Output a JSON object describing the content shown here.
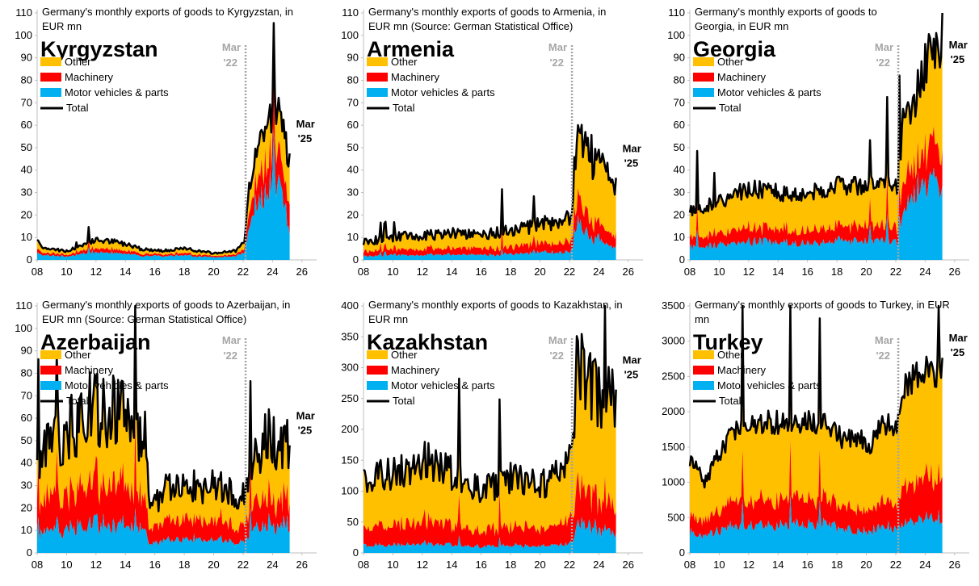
{
  "colors": {
    "other": "#ffc000",
    "machinery": "#ff0000",
    "motor": "#00b0f0",
    "total": "#000000",
    "marker": "#a6a6a6"
  },
  "legend": {
    "other": "Other",
    "machinery": "Machinery",
    "motor": "Motor vehicles & parts",
    "total": "Total"
  },
  "annotations": {
    "mar22_line1": "Mar",
    "mar22_line2": "'22",
    "mar25_line1": "Mar",
    "mar25_line2": "'25"
  },
  "chart_data": [
    {
      "type": "area",
      "country": "Kyrgyzstan",
      "title_lines": [
        "Germany's monthly exports of goods to Kyrgyzstan, in",
        "EUR mn"
      ],
      "ylim": [
        0,
        110
      ],
      "yticks": [
        0,
        10,
        20,
        30,
        40,
        50,
        60,
        70,
        80,
        90,
        100,
        110
      ],
      "xlim": [
        2008,
        2027
      ],
      "xticks": [
        "08",
        "10",
        "12",
        "14",
        "16",
        "18",
        "20",
        "22",
        "24",
        "26"
      ],
      "marker_x": 2022.17,
      "series_profile": [
        [
          2008,
          8,
          0.4,
          0.2
        ],
        [
          2008.6,
          5,
          0.4,
          0.2
        ],
        [
          2010,
          4,
          0.4,
          0.2
        ],
        [
          2011,
          6,
          0.4,
          0.2
        ],
        [
          2012,
          9,
          0.4,
          0.2
        ],
        [
          2013.5,
          8,
          0.4,
          0.2
        ],
        [
          2015,
          5,
          0.4,
          0.2
        ],
        [
          2016.5,
          4,
          0.4,
          0.2
        ],
        [
          2018,
          5,
          0.4,
          0.2
        ],
        [
          2020,
          3,
          0.4,
          0.2
        ],
        [
          2021.5,
          4,
          0.4,
          0.2
        ],
        [
          2022.1,
          8,
          0.4,
          0.2
        ],
        [
          2022.4,
          30,
          0.5,
          0.22
        ],
        [
          2022.8,
          48,
          0.5,
          0.22
        ],
        [
          2023.5,
          60,
          0.5,
          0.22
        ],
        [
          2024.2,
          68,
          0.48,
          0.22
        ],
        [
          2024.8,
          55,
          0.45,
          0.2
        ],
        [
          2025.2,
          40,
          0.25,
          0.25
        ]
      ],
      "noise": 0.15,
      "end_x": 2025.17
    },
    {
      "type": "area",
      "country": "Armenia",
      "title_lines": [
        "Germany's monthly exports of goods to Armenia, in",
        "EUR mn (Source: German Statistical Office)"
      ],
      "ylim": [
        0,
        110
      ],
      "yticks": [
        0,
        10,
        20,
        30,
        40,
        50,
        60,
        70,
        80,
        90,
        100,
        110
      ],
      "xlim": [
        2008,
        2027
      ],
      "xticks": [
        "08",
        "10",
        "12",
        "14",
        "16",
        "18",
        "20",
        "22",
        "24",
        "26"
      ],
      "marker_x": 2022.17,
      "series_profile": [
        [
          2008,
          8,
          0.2,
          0.25
        ],
        [
          2010,
          10,
          0.2,
          0.25
        ],
        [
          2012,
          11,
          0.2,
          0.25
        ],
        [
          2014,
          12,
          0.2,
          0.25
        ],
        [
          2016,
          11,
          0.2,
          0.25
        ],
        [
          2018,
          13,
          0.2,
          0.25
        ],
        [
          2020,
          16,
          0.2,
          0.25
        ],
        [
          2021.5,
          18,
          0.2,
          0.25
        ],
        [
          2022.1,
          20,
          0.2,
          0.25
        ],
        [
          2022.5,
          55,
          0.3,
          0.2
        ],
        [
          2023,
          50,
          0.25,
          0.18
        ],
        [
          2024,
          42,
          0.2,
          0.15
        ],
        [
          2025.2,
          30,
          0.15,
          0.15
        ]
      ],
      "noise": 0.22,
      "end_x": 2025.17
    },
    {
      "type": "area",
      "country": "Georgia",
      "title_lines": [
        "Germany's monthly exports of goods to",
        "Georgia, in EUR mn"
      ],
      "ylim": [
        0,
        110
      ],
      "yticks": [
        0,
        10,
        20,
        30,
        40,
        50,
        60,
        70,
        80,
        90,
        100,
        110
      ],
      "xlim": [
        2008,
        2027
      ],
      "xticks": [
        "08",
        "10",
        "12",
        "14",
        "16",
        "18",
        "20",
        "22",
        "24",
        "26"
      ],
      "marker_x": 2022.17,
      "series_profile": [
        [
          2008,
          22,
          0.25,
          0.2
        ],
        [
          2010,
          26,
          0.25,
          0.2
        ],
        [
          2012,
          32,
          0.25,
          0.2
        ],
        [
          2014,
          30,
          0.25,
          0.2
        ],
        [
          2016,
          30,
          0.25,
          0.2
        ],
        [
          2018,
          33,
          0.25,
          0.2
        ],
        [
          2020,
          33,
          0.25,
          0.2
        ],
        [
          2021.5,
          34,
          0.25,
          0.2
        ],
        [
          2022.1,
          32,
          0.25,
          0.2
        ],
        [
          2022.5,
          60,
          0.35,
          0.2
        ],
        [
          2023.5,
          75,
          0.4,
          0.18
        ],
        [
          2024.4,
          95,
          0.4,
          0.18
        ],
        [
          2025.2,
          85,
          0.35,
          0.15
        ]
      ],
      "noise": 0.13,
      "end_x": 2025.17
    },
    {
      "type": "area",
      "country": "Azerbaijan",
      "title_lines": [
        "Germany's monthly exports of goods to Azerbaijan, in",
        "EUR mn (Source: German Statistical Office)"
      ],
      "ylim": [
        0,
        110
      ],
      "yticks": [
        0,
        10,
        20,
        30,
        40,
        50,
        60,
        70,
        80,
        90,
        100,
        110
      ],
      "xlim": [
        2008,
        2027
      ],
      "xticks": [
        "08",
        "10",
        "12",
        "14",
        "16",
        "18",
        "20",
        "22",
        "24",
        "26"
      ],
      "marker_x": 2022.17,
      "series_profile": [
        [
          2008,
          40,
          0.2,
          0.3
        ],
        [
          2010,
          55,
          0.2,
          0.3
        ],
        [
          2012,
          65,
          0.2,
          0.3
        ],
        [
          2014,
          60,
          0.2,
          0.3
        ],
        [
          2015.3,
          55,
          0.2,
          0.3
        ],
        [
          2015.6,
          20,
          0.2,
          0.3
        ],
        [
          2017,
          30,
          0.2,
          0.3
        ],
        [
          2019,
          30,
          0.2,
          0.3
        ],
        [
          2021,
          30,
          0.2,
          0.3
        ],
        [
          2022.1,
          25,
          0.2,
          0.3
        ],
        [
          2022.5,
          40,
          0.25,
          0.25
        ],
        [
          2023.5,
          50,
          0.25,
          0.25
        ],
        [
          2025.2,
          50,
          0.25,
          0.22
        ]
      ],
      "noise": 0.28,
      "end_x": 2025.17
    },
    {
      "type": "area",
      "country": "Kazakhstan",
      "title_lines": [
        "Germany's monthly exports of goods to Kazakhstan, in",
        "EUR mn"
      ],
      "ylim": [
        0,
        400
      ],
      "yticks": [
        0,
        50,
        100,
        150,
        200,
        250,
        300,
        350,
        400
      ],
      "xlim": [
        2008,
        2027
      ],
      "xticks": [
        "08",
        "10",
        "12",
        "14",
        "16",
        "18",
        "20",
        "22",
        "24",
        "26"
      ],
      "marker_x": 2022.17,
      "series_profile": [
        [
          2008,
          120,
          0.1,
          0.25
        ],
        [
          2010,
          130,
          0.1,
          0.25
        ],
        [
          2012,
          150,
          0.1,
          0.25
        ],
        [
          2014,
          130,
          0.1,
          0.25
        ],
        [
          2016,
          100,
          0.1,
          0.25
        ],
        [
          2018,
          120,
          0.1,
          0.25
        ],
        [
          2020,
          110,
          0.1,
          0.25
        ],
        [
          2021.5,
          130,
          0.1,
          0.25
        ],
        [
          2022.1,
          150,
          0.1,
          0.25
        ],
        [
          2022.5,
          300,
          0.15,
          0.2
        ],
        [
          2023,
          290,
          0.15,
          0.2
        ],
        [
          2024,
          260,
          0.15,
          0.2
        ],
        [
          2025.2,
          250,
          0.12,
          0.15
        ]
      ],
      "noise": 0.22,
      "end_x": 2025.17
    },
    {
      "type": "area",
      "country": "Turkey",
      "title_lines": [
        "Germany's monthly exports of goods to Turkey, in EUR",
        "mn"
      ],
      "ylim": [
        0,
        3500
      ],
      "yticks": [
        0,
        500,
        1000,
        1500,
        2000,
        2500,
        3000,
        3500
      ],
      "xlim": [
        2008,
        2027
      ],
      "xticks": [
        "08",
        "10",
        "12",
        "14",
        "16",
        "18",
        "20",
        "22",
        "24",
        "26"
      ],
      "marker_x": 2022.17,
      "series_profile": [
        [
          2008,
          1350,
          0.22,
          0.2
        ],
        [
          2009,
          1000,
          0.22,
          0.2
        ],
        [
          2010,
          1400,
          0.22,
          0.2
        ],
        [
          2011,
          1750,
          0.22,
          0.2
        ],
        [
          2013,
          1850,
          0.22,
          0.2
        ],
        [
          2015,
          1850,
          0.22,
          0.2
        ],
        [
          2017,
          1850,
          0.22,
          0.2
        ],
        [
          2018.5,
          1600,
          0.2,
          0.2
        ],
        [
          2019.5,
          1650,
          0.2,
          0.2
        ],
        [
          2020.3,
          1500,
          0.2,
          0.2
        ],
        [
          2021,
          1850,
          0.2,
          0.2
        ],
        [
          2022.1,
          1800,
          0.2,
          0.2
        ],
        [
          2022.5,
          2400,
          0.18,
          0.22
        ],
        [
          2024,
          2600,
          0.18,
          0.22
        ],
        [
          2025.2,
          2550,
          0.18,
          0.22
        ]
      ],
      "noise": 0.09,
      "end_x": 2025.17
    }
  ]
}
